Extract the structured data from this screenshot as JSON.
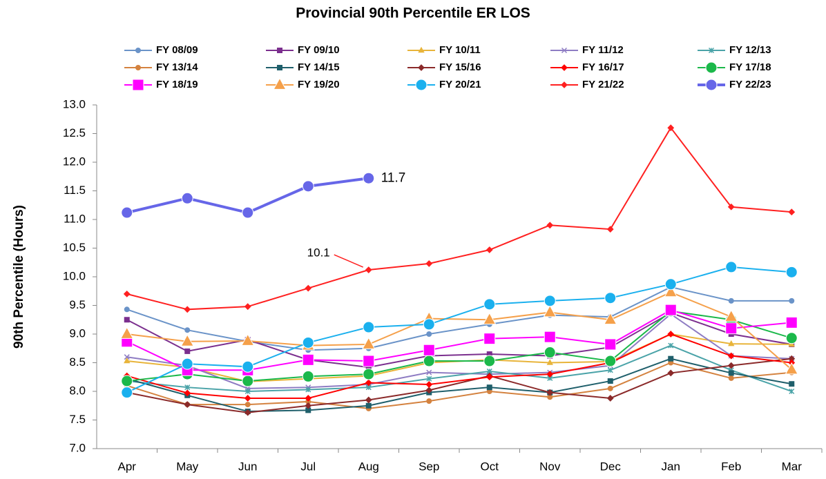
{
  "chart_data": {
    "type": "line",
    "title": "Provincial 90th Percentile ER LOS",
    "y_label": "90th Percentile (Hours)",
    "categories": [
      "Apr",
      "May",
      "Jun",
      "Jul",
      "Aug",
      "Sep",
      "Oct",
      "Nov",
      "Dec",
      "Jan",
      "Feb",
      "Mar"
    ],
    "ylim": [
      7,
      13
    ],
    "yticks": [
      {
        "value": 7,
        "label": "7.0"
      },
      {
        "value": 7.5,
        "label": "7.5"
      },
      {
        "value": 8,
        "label": "8.0"
      },
      {
        "value": 8.5,
        "label": "8.5"
      },
      {
        "value": 9,
        "label": "9.0"
      },
      {
        "value": 9.5,
        "label": "9.5"
      },
      {
        "value": 10,
        "label": "10.0"
      },
      {
        "value": 10.5,
        "label": "10.5"
      },
      {
        "value": 11,
        "label": "11.0"
      },
      {
        "value": 11.5,
        "label": "11.5"
      },
      {
        "value": 12,
        "label": "12.0"
      },
      {
        "value": 12.5,
        "label": "12.5"
      },
      {
        "value": 13,
        "label": "13.0"
      }
    ],
    "grid": false,
    "series": [
      {
        "name": "FY 08/09",
        "color": "#6a93c8",
        "marker": "circle",
        "values": [
          9.43,
          9.07,
          8.87,
          8.72,
          8.75,
          9.0,
          9.17,
          9.33,
          9.3,
          9.82,
          9.58,
          9.58
        ]
      },
      {
        "name": "FY 09/10",
        "color": "#7b2f8e",
        "marker": "square",
        "values": [
          9.25,
          8.7,
          8.9,
          8.55,
          8.42,
          8.62,
          8.65,
          8.62,
          8.77,
          9.37,
          9.0,
          8.82
        ]
      },
      {
        "name": "FY 10/11",
        "color": "#e8b43a",
        "marker": "triangle",
        "values": [
          8.53,
          8.42,
          8.17,
          8.22,
          8.27,
          8.5,
          8.55,
          8.5,
          8.52,
          9.0,
          8.83,
          8.82
        ]
      },
      {
        "name": "FY 11/12",
        "color": "#8e7cc3",
        "marker": "x",
        "values": [
          8.6,
          8.45,
          8.05,
          8.07,
          8.12,
          8.33,
          8.3,
          8.33,
          8.45,
          9.35,
          8.62,
          8.57
        ]
      },
      {
        "name": "FY 12/13",
        "color": "#4aa3a8",
        "marker": "asterisk",
        "values": [
          8.18,
          8.07,
          8.0,
          8.03,
          8.07,
          8.22,
          8.35,
          8.23,
          8.37,
          8.8,
          8.37,
          8.0
        ]
      },
      {
        "name": "FY 13/14",
        "color": "#d4823f",
        "marker": "circle",
        "values": [
          8.1,
          7.77,
          7.77,
          7.82,
          7.7,
          7.83,
          8.0,
          7.9,
          8.05,
          8.5,
          8.23,
          8.33
        ]
      },
      {
        "name": "FY 14/15",
        "color": "#1f5f6b",
        "marker": "square",
        "values": [
          8.22,
          7.93,
          7.65,
          7.67,
          7.75,
          7.98,
          8.07,
          7.98,
          8.18,
          8.57,
          8.32,
          8.13
        ]
      },
      {
        "name": "FY 15/16",
        "color": "#8b2a2a",
        "marker": "diamond",
        "values": [
          7.98,
          7.77,
          7.63,
          7.75,
          7.85,
          8.02,
          8.27,
          7.98,
          7.88,
          8.32,
          8.45,
          8.57
        ]
      },
      {
        "name": "FY 16/17",
        "color": "#ff0000",
        "marker": "diamond",
        "values": [
          8.27,
          7.97,
          7.88,
          7.88,
          8.15,
          8.12,
          8.25,
          8.3,
          8.5,
          9.0,
          8.62,
          8.5
        ]
      },
      {
        "name": "FY 17/18",
        "color": "#1bb84a",
        "marker": "large-circle",
        "values": [
          8.18,
          8.3,
          8.18,
          8.26,
          8.3,
          8.53,
          8.53,
          8.68,
          8.53,
          9.4,
          9.25,
          8.93
        ]
      },
      {
        "name": "FY 18/19",
        "color": "#ff00ff",
        "marker": "large-square",
        "values": [
          8.87,
          8.37,
          8.37,
          8.55,
          8.53,
          8.72,
          8.92,
          8.95,
          8.82,
          9.42,
          9.1,
          9.2
        ]
      },
      {
        "name": "FY 19/20",
        "color": "#f5a04a",
        "marker": "large-triangle",
        "values": [
          9.0,
          8.87,
          8.88,
          8.8,
          8.82,
          9.27,
          9.25,
          9.38,
          9.25,
          9.73,
          9.3,
          8.38
        ]
      },
      {
        "name": "FY 20/21",
        "color": "#1ab0ee",
        "marker": "large-circle",
        "values": [
          7.98,
          8.48,
          8.43,
          8.85,
          9.12,
          9.17,
          9.52,
          9.58,
          9.63,
          9.87,
          10.17,
          10.08
        ]
      },
      {
        "name": "FY 21/22",
        "color": "#ff2020",
        "marker": "diamond",
        "label_position": "left",
        "values": [
          9.7,
          9.43,
          9.48,
          9.8,
          10.12,
          10.23,
          10.47,
          10.9,
          10.83,
          12.6,
          11.22,
          11.13
        ],
        "value_labels": [
          null,
          null,
          null,
          null,
          "10.1",
          null,
          null,
          null,
          null,
          null,
          null,
          null
        ]
      },
      {
        "name": "FY 22/23",
        "color": "#6666e8",
        "marker": "large-circle",
        "label_position": "right",
        "values": [
          11.12,
          11.37,
          11.12,
          11.58,
          11.72,
          null,
          null,
          null,
          null,
          null,
          null,
          null
        ],
        "value_labels": [
          null,
          null,
          null,
          null,
          "11.7",
          null,
          null,
          null,
          null,
          null,
          null,
          null
        ]
      }
    ]
  }
}
